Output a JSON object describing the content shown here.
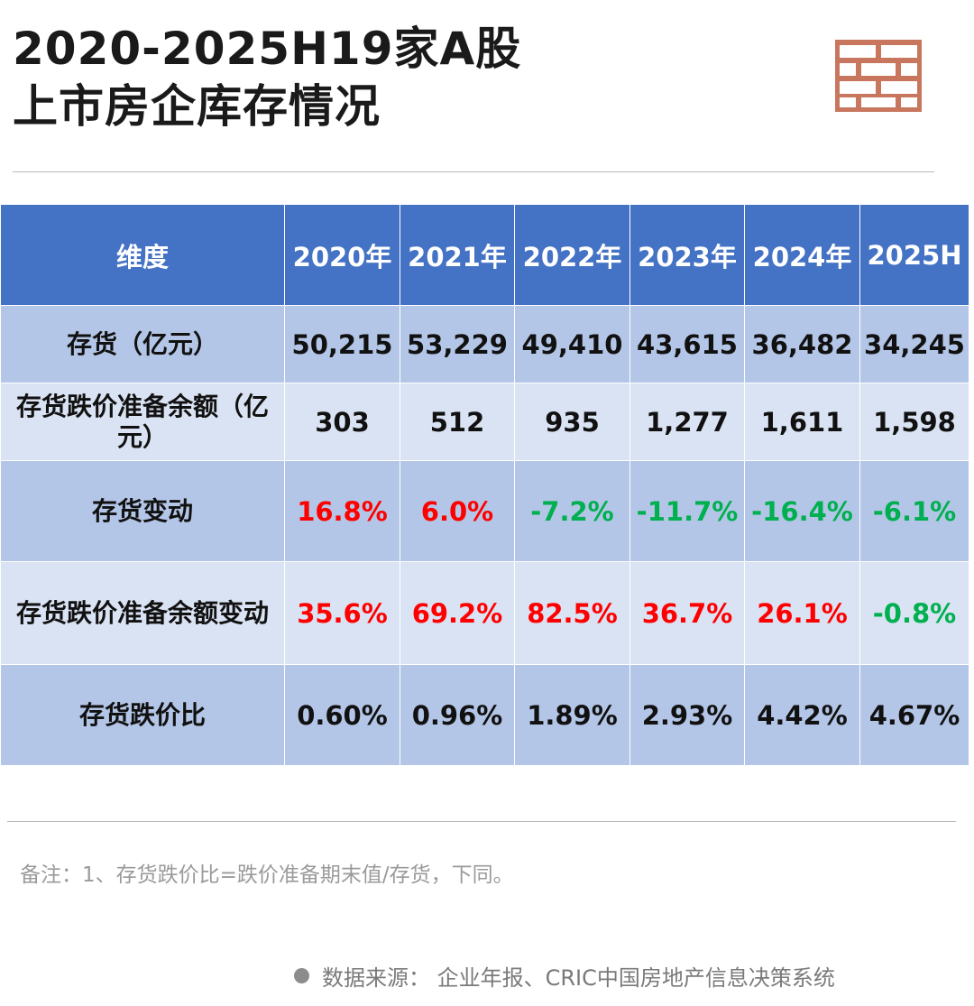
{
  "title": {
    "line1": "2020-2025H19家A股",
    "line2": "上市房企库存情况"
  },
  "icons": {
    "header_graphic": "brick-wall-icon",
    "source_bullet": "bullet-dot-icon"
  },
  "colors": {
    "header_bg": "#4472c4",
    "row_dark": "#b4c6e7",
    "row_light": "#dae3f3",
    "increase": "#ff0000",
    "decrease": "#00b050",
    "brick": "#c8775e"
  },
  "chart_data": {
    "type": "table",
    "columns": [
      "维度",
      "2020年",
      "2021年",
      "2022年",
      "2023年",
      "2024年",
      "2025H"
    ],
    "rows": [
      {
        "label": "存货（亿元）",
        "values": [
          "50,215",
          "53,229",
          "49,410",
          "43,615",
          "36,482",
          "34,245"
        ],
        "signs": [
          "neu",
          "neu",
          "neu",
          "neu",
          "neu",
          "neu"
        ]
      },
      {
        "label": "存货跌价准备余额（亿元）",
        "values": [
          "303",
          "512",
          "935",
          "1,277",
          "1,611",
          "1,598"
        ],
        "signs": [
          "neu",
          "neu",
          "neu",
          "neu",
          "neu",
          "neu"
        ]
      },
      {
        "label": "存货变动",
        "values": [
          "16.8%",
          "6.0%",
          "-7.2%",
          "-11.7%",
          "-16.4%",
          "-6.1%"
        ],
        "signs": [
          "pos",
          "pos",
          "neg",
          "neg",
          "neg",
          "neg"
        ]
      },
      {
        "label": "存货跌价准备余额变动",
        "values": [
          "35.6%",
          "69.2%",
          "82.5%",
          "36.7%",
          "26.1%",
          "-0.8%"
        ],
        "signs": [
          "pos",
          "pos",
          "pos",
          "pos",
          "pos",
          "neg"
        ]
      },
      {
        "label": "存货跌价比",
        "values": [
          "0.60%",
          "0.96%",
          "1.89%",
          "2.93%",
          "4.42%",
          "4.67%"
        ],
        "signs": [
          "neu",
          "neu",
          "neu",
          "neu",
          "neu",
          "neu"
        ]
      }
    ]
  },
  "note": "备注：1、存货跌价比=跌价准备期末值/存货，下同。",
  "source": "数据来源： 企业年报、CRIC中国房地产信息决策系统"
}
